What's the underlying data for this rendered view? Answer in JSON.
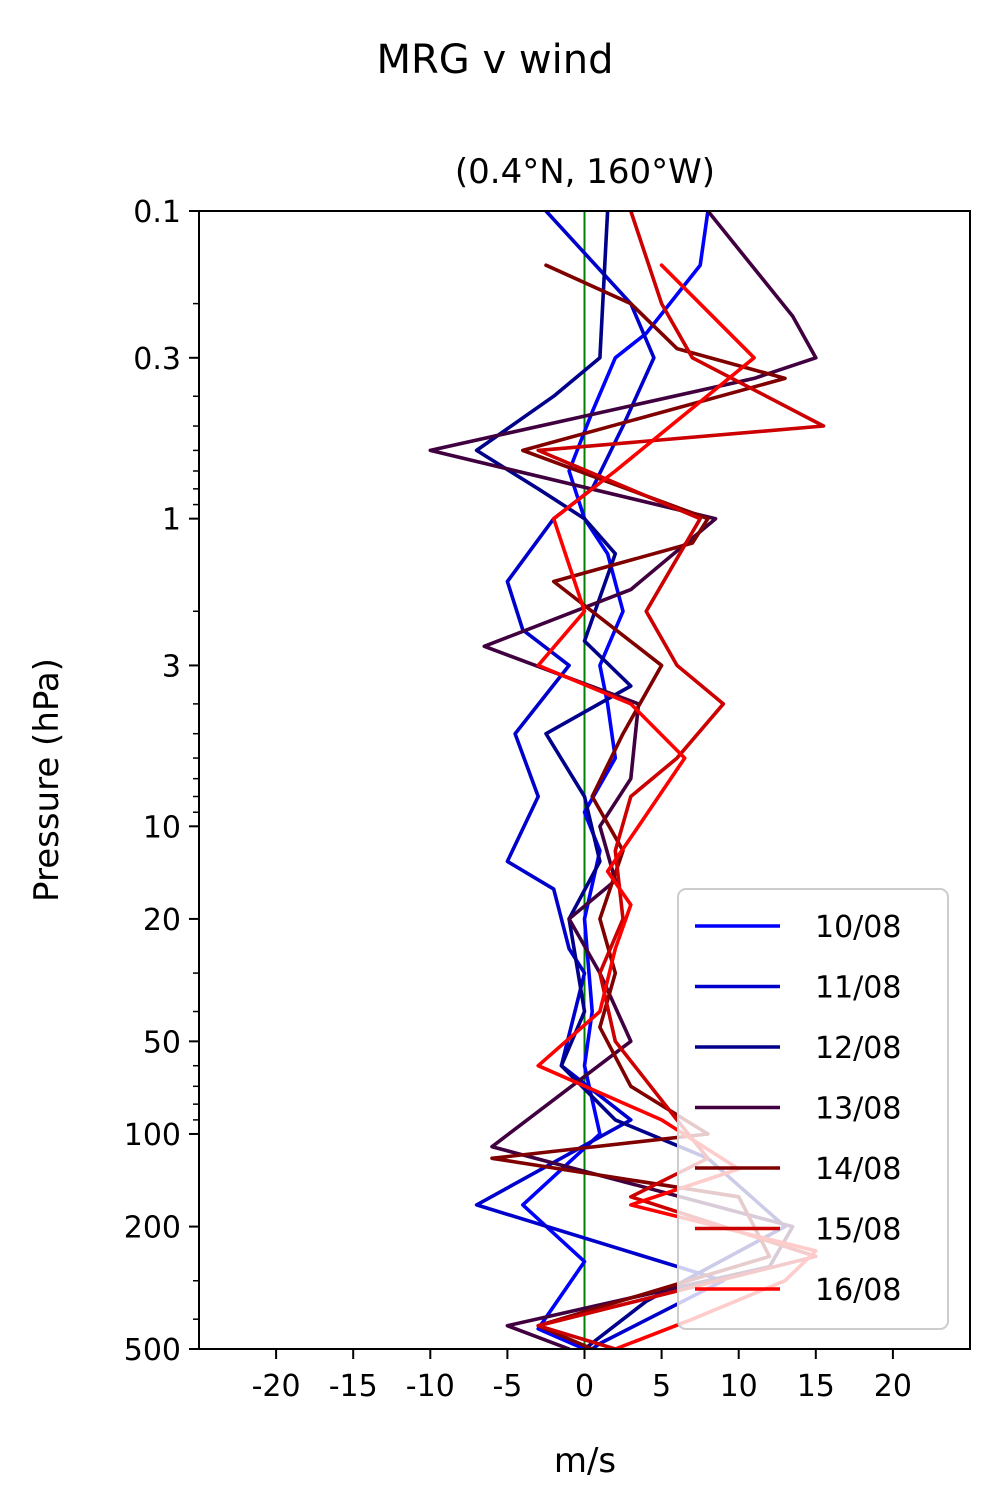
{
  "chart_data": {
    "type": "line",
    "title": "MRG v wind",
    "subtitle": "(0.4°N, 160°W)",
    "xlabel": "m/s",
    "ylabel": "Pressure (hPa)",
    "xlim": [
      -25,
      25
    ],
    "ylim": [
      500,
      0.1
    ],
    "yscale": "log",
    "x_ticks": [
      {
        "value": -20,
        "label": "-20"
      },
      {
        "value": -15,
        "label": "-15"
      },
      {
        "value": -10,
        "label": "-10"
      },
      {
        "value": -5,
        "label": "-5"
      },
      {
        "value": 0,
        "label": "0"
      },
      {
        "value": 5,
        "label": "5"
      },
      {
        "value": 10,
        "label": "10"
      },
      {
        "value": 15,
        "label": "15"
      },
      {
        "value": 20,
        "label": "20"
      }
    ],
    "y_ticks": [
      {
        "value": 0.1,
        "label": "0.1"
      },
      {
        "value": 0.3,
        "label": "0.3"
      },
      {
        "value": 1,
        "label": "1"
      },
      {
        "value": 3,
        "label": "3"
      },
      {
        "value": 10,
        "label": "10"
      },
      {
        "value": 20,
        "label": "20"
      },
      {
        "value": 50,
        "label": "50"
      },
      {
        "value": 100,
        "label": "100"
      },
      {
        "value": 200,
        "label": "200"
      },
      {
        "value": 500,
        "label": "500"
      }
    ],
    "zero_line_color": "#008000",
    "legend_position": "lower-right",
    "series": [
      {
        "name": "10/08",
        "color": "#0000ff",
        "points": [
          [
            8,
            0.1
          ],
          [
            7.5,
            0.15
          ],
          [
            4,
            0.25
          ],
          [
            2,
            0.3
          ],
          [
            0.5,
            0.45
          ],
          [
            -1,
            0.7
          ],
          [
            0,
            1
          ],
          [
            1.5,
            1.3
          ],
          [
            2.5,
            2
          ],
          [
            1,
            3
          ],
          [
            1.5,
            4
          ],
          [
            2,
            6
          ],
          [
            0,
            9
          ],
          [
            1,
            12
          ],
          [
            0,
            20
          ],
          [
            0.5,
            40
          ],
          [
            0,
            60
          ],
          [
            1,
            100
          ],
          [
            -4,
            170
          ],
          [
            0,
            260
          ],
          [
            -3,
            430
          ],
          [
            0,
            500
          ]
        ]
      },
      {
        "name": "11/08",
        "color": "#0000cc",
        "points": [
          [
            -2.5,
            0.1
          ],
          [
            3,
            0.2
          ],
          [
            4.5,
            0.3
          ],
          [
            2.5,
            0.5
          ],
          [
            0.5,
            0.8
          ],
          [
            -2,
            1
          ],
          [
            -5,
            1.6
          ],
          [
            -4,
            2.3
          ],
          [
            -1,
            3
          ],
          [
            -4.5,
            5
          ],
          [
            -3,
            8
          ],
          [
            -5,
            13
          ],
          [
            -2,
            16
          ],
          [
            -1,
            25
          ],
          [
            0,
            30
          ],
          [
            -1.5,
            60
          ],
          [
            3,
            90
          ],
          [
            -7,
            170
          ],
          [
            9,
            300
          ],
          [
            1,
            480
          ],
          [
            0.5,
            500
          ]
        ]
      },
      {
        "name": "12/08",
        "color": "#00008b",
        "points": [
          [
            1.5,
            0.1
          ],
          [
            1,
            0.3
          ],
          [
            -2,
            0.4
          ],
          [
            -7,
            0.6
          ],
          [
            -3,
            0.8
          ],
          [
            0,
            1
          ],
          [
            2,
            1.3
          ],
          [
            0,
            2.5
          ],
          [
            3,
            3.5
          ],
          [
            -2.5,
            5
          ],
          [
            0,
            8
          ],
          [
            1,
            13
          ],
          [
            -1,
            20
          ],
          [
            0,
            40
          ],
          [
            -1.5,
            60
          ],
          [
            2,
            90
          ],
          [
            8,
            120
          ],
          [
            13,
            200
          ],
          [
            4,
            350
          ],
          [
            0,
            500
          ]
        ]
      },
      {
        "name": "13/08",
        "color": "#400040",
        "points": [
          [
            8,
            0.1
          ],
          [
            13.5,
            0.22
          ],
          [
            15,
            0.3
          ],
          [
            11,
            0.35
          ],
          [
            -10,
            0.6
          ],
          [
            8.5,
            1
          ],
          [
            3,
            1.7
          ],
          [
            -6.5,
            2.6
          ],
          [
            3.5,
            4
          ],
          [
            3,
            7
          ],
          [
            1,
            10
          ],
          [
            2,
            15
          ],
          [
            -1,
            20
          ],
          [
            1,
            30
          ],
          [
            3,
            50
          ],
          [
            -6,
            110
          ],
          [
            13.5,
            200
          ],
          [
            12,
            270
          ],
          [
            -5,
            420
          ],
          [
            -1,
            500
          ]
        ]
      },
      {
        "name": "14/08",
        "color": "#800000",
        "points": [
          [
            -2.5,
            0.15
          ],
          [
            3,
            0.2
          ],
          [
            6,
            0.28
          ],
          [
            13,
            0.35
          ],
          [
            -4,
            0.6
          ],
          [
            8,
            1
          ],
          [
            7,
            1.2
          ],
          [
            -2,
            1.6
          ],
          [
            5,
            3
          ],
          [
            2.5,
            5
          ],
          [
            0.5,
            8
          ],
          [
            2.5,
            12
          ],
          [
            1,
            20
          ],
          [
            2,
            30
          ],
          [
            1,
            45
          ],
          [
            3,
            70
          ],
          [
            8,
            100
          ],
          [
            -6,
            120
          ],
          [
            10,
            160
          ],
          [
            12,
            250
          ],
          [
            -3,
            420
          ],
          [
            0.5,
            500
          ]
        ]
      },
      {
        "name": "15/08",
        "color": "#cc0000",
        "points": [
          [
            3,
            0.1
          ],
          [
            5,
            0.2
          ],
          [
            7,
            0.3
          ],
          [
            15.5,
            0.5
          ],
          [
            -3,
            0.6
          ],
          [
            7.5,
            1
          ],
          [
            4,
            2
          ],
          [
            6,
            3
          ],
          [
            9,
            4
          ],
          [
            6,
            6
          ],
          [
            3,
            8
          ],
          [
            2,
            12
          ],
          [
            2.5,
            20
          ],
          [
            1,
            30
          ],
          [
            2,
            50
          ],
          [
            6,
            90
          ],
          [
            8,
            120
          ],
          [
            3,
            160
          ],
          [
            15,
            250
          ],
          [
            -3,
            420
          ],
          [
            2,
            500
          ]
        ]
      },
      {
        "name": "16/08",
        "color": "#ff0000",
        "points": [
          [
            5,
            0.15
          ],
          [
            11,
            0.3
          ],
          [
            2,
            0.7
          ],
          [
            -2,
            1
          ],
          [
            0,
            2
          ],
          [
            -3,
            3
          ],
          [
            3,
            4
          ],
          [
            6.5,
            6
          ],
          [
            3.5,
            10
          ],
          [
            1.5,
            14
          ],
          [
            3,
            18
          ],
          [
            2,
            25
          ],
          [
            1,
            40
          ],
          [
            -3,
            60
          ],
          [
            5,
            90
          ],
          [
            10,
            130
          ],
          [
            3,
            170
          ],
          [
            15,
            240
          ],
          [
            13,
            300
          ],
          [
            7,
            400
          ],
          [
            2,
            500
          ]
        ]
      }
    ]
  }
}
